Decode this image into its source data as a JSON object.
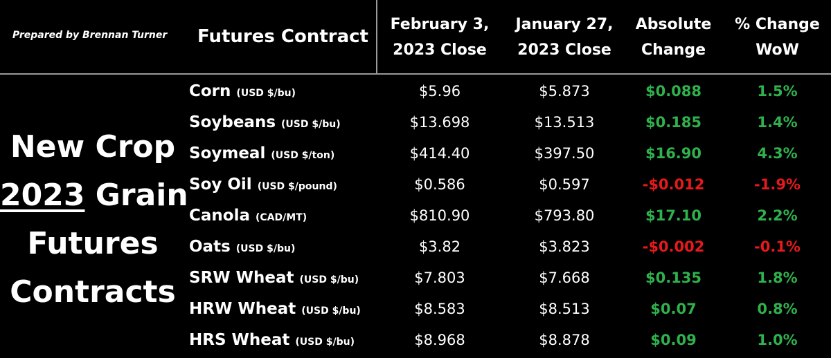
{
  "prepared_by": "Prepared by Brennan Turner",
  "side_title": {
    "line1": "New Crop",
    "line2_year": "2023",
    "line2_rest": " Grain",
    "line3": "Futures",
    "line4": "Contracts"
  },
  "headers": {
    "contract": "Futures Contract",
    "feb_line1": "February 3,",
    "feb_line2": "2023 Close",
    "jan_line1": "January 27,",
    "jan_line2": "2023 Close",
    "abs_line1": "Absolute",
    "abs_line2": "Change",
    "pct_line1": "% Change",
    "pct_line2": "WoW"
  },
  "colors": {
    "positive": "#2fb14c",
    "negative": "#e8191c",
    "text": "#ffffff",
    "background": "#000000",
    "divider": "#9a9a9a"
  },
  "rows": [
    {
      "name": "Corn",
      "unit": "(USD $/bu)",
      "feb3": "$5.96",
      "jan27": "$5.873",
      "abs": "$0.088",
      "pct": "1.5%",
      "dir": "up"
    },
    {
      "name": "Soybeans",
      "unit": "(USD $/bu)",
      "feb3": "$13.698",
      "jan27": "$13.513",
      "abs": "$0.185",
      "pct": "1.4%",
      "dir": "up"
    },
    {
      "name": "Soymeal",
      "unit": "(USD $/ton)",
      "feb3": "$414.40",
      "jan27": "$397.50",
      "abs": "$16.90",
      "pct": "4.3%",
      "dir": "up"
    },
    {
      "name": "Soy Oil",
      "unit": "(USD $/pound)",
      "feb3": "$0.586",
      "jan27": "$0.597",
      "abs": "-$0.012",
      "pct": "-1.9%",
      "dir": "down"
    },
    {
      "name": "Canola",
      "unit": "(CAD/MT)",
      "feb3": "$810.90",
      "jan27": "$793.80",
      "abs": "$17.10",
      "pct": "2.2%",
      "dir": "up"
    },
    {
      "name": "Oats",
      "unit": "(USD $/bu)",
      "feb3": "$3.82",
      "jan27": "$3.823",
      "abs": "-$0.002",
      "pct": "-0.1%",
      "dir": "down"
    },
    {
      "name": "SRW Wheat",
      "unit": "(USD $/bu)",
      "feb3": "$7.803",
      "jan27": "$7.668",
      "abs": "$0.135",
      "pct": "1.8%",
      "dir": "up"
    },
    {
      "name": "HRW Wheat",
      "unit": "(USD $/bu)",
      "feb3": "$8.583",
      "jan27": "$8.513",
      "abs": "$0.07",
      "pct": "0.8%",
      "dir": "up"
    },
    {
      "name": "HRS Wheat",
      "unit": "(USD $/bu)",
      "feb3": "$8.968",
      "jan27": "$8.878",
      "abs": "$0.09",
      "pct": "1.0%",
      "dir": "up"
    }
  ]
}
